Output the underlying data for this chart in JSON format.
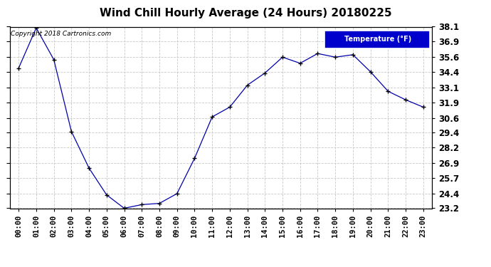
{
  "title": "Wind Chill Hourly Average (24 Hours) 20180225",
  "copyright_text": "Copyright 2018 Cartronics.com",
  "legend_label": "Temperature (°F)",
  "hours": [
    0,
    1,
    2,
    3,
    4,
    5,
    6,
    7,
    8,
    9,
    10,
    11,
    12,
    13,
    14,
    15,
    16,
    17,
    18,
    19,
    20,
    21,
    22,
    23
  ],
  "x_labels": [
    "00:00",
    "01:00",
    "02:00",
    "03:00",
    "04:00",
    "05:00",
    "06:00",
    "07:00",
    "08:00",
    "09:00",
    "10:00",
    "11:00",
    "12:00",
    "13:00",
    "14:00",
    "15:00",
    "16:00",
    "17:00",
    "18:00",
    "19:00",
    "20:00",
    "21:00",
    "22:00",
    "23:00"
  ],
  "values": [
    34.7,
    38.0,
    35.4,
    29.5,
    26.5,
    24.3,
    23.2,
    23.5,
    23.6,
    24.4,
    27.3,
    30.7,
    31.5,
    33.3,
    34.3,
    35.6,
    35.1,
    35.9,
    35.6,
    35.8,
    34.4,
    32.8,
    32.1,
    31.5
  ],
  "yticks": [
    23.2,
    24.4,
    25.7,
    26.9,
    28.2,
    29.4,
    30.6,
    31.9,
    33.1,
    34.4,
    35.6,
    36.9,
    38.1
  ],
  "ylim_min": 23.2,
  "ylim_max": 38.1,
  "line_color": "#0000AA",
  "marker_color": "#000000",
  "grid_color": "#C8C8C8",
  "bg_color": "#FFFFFF",
  "title_fontsize": 11,
  "copyright_fontsize": 6.5,
  "legend_bg": "#0000CD",
  "legend_fg": "#FFFFFF",
  "tick_label_fontsize": 7.5,
  "ytick_label_fontsize": 8.5
}
